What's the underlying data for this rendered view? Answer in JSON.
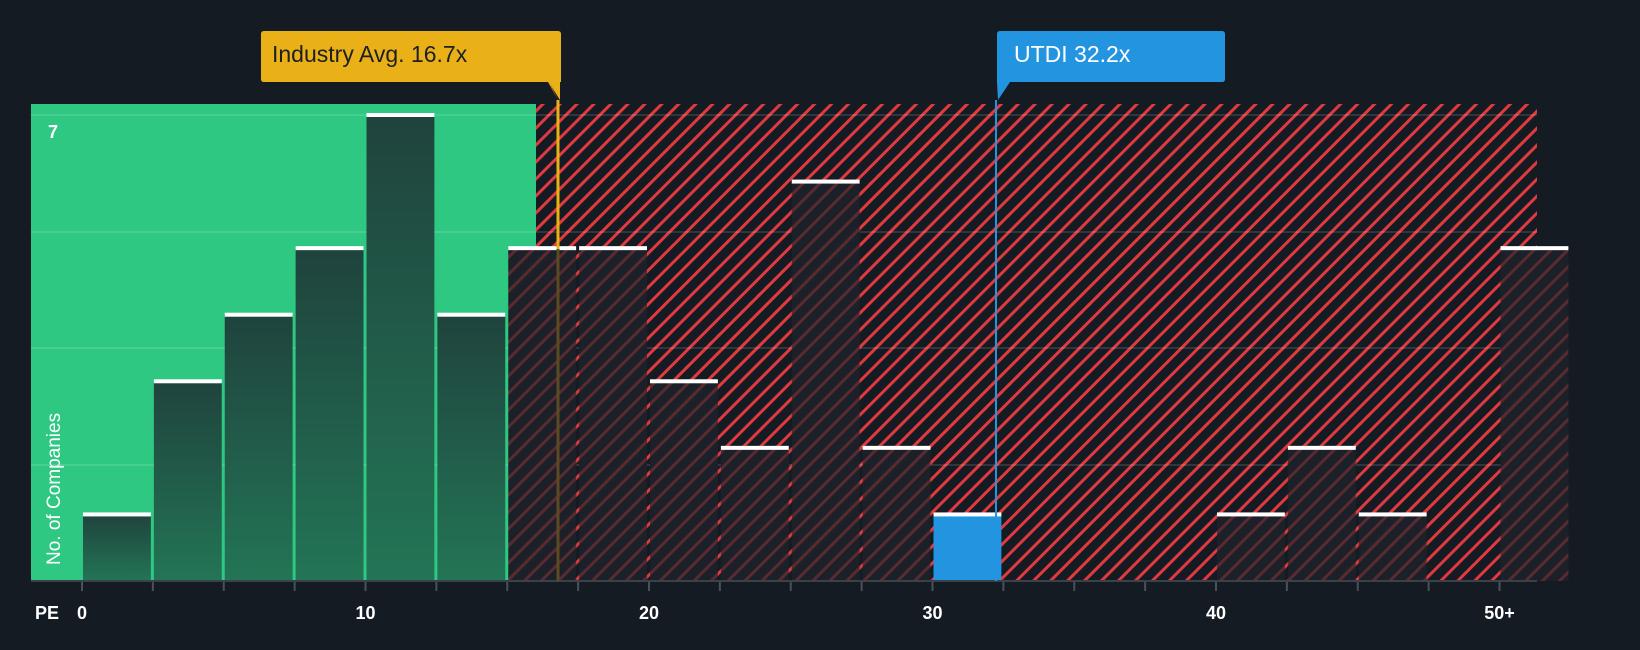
{
  "chart_data": {
    "type": "bar",
    "title": "",
    "xlabel": "PE",
    "ylabel": "No. of Companies",
    "x_tick_labels": [
      "0",
      "10",
      "20",
      "30",
      "40",
      "50+"
    ],
    "y_tick_labels": [
      "7"
    ],
    "ylim": [
      0,
      7
    ],
    "bin_width": 2.5,
    "categories": [
      "0-2.5",
      "2.5-5",
      "5-7.5",
      "7.5-10",
      "10-12.5",
      "12.5-15",
      "15-17.5",
      "17.5-20",
      "20-22.5",
      "22.5-25",
      "25-27.5",
      "27.5-30",
      "30-32.5",
      "32.5-35",
      "35-37.5",
      "37.5-40",
      "40-42.5",
      "42.5-45",
      "45-47.5",
      "47.5-50",
      "50+"
    ],
    "values": [
      1,
      3,
      4,
      5,
      7,
      4,
      5,
      5,
      3,
      2,
      6,
      2,
      1,
      0,
      0,
      0,
      1,
      2,
      1,
      0,
      5
    ],
    "highlight_bin_index": 12,
    "annotations": [
      {
        "label": "Industry Avg. 16.7x",
        "value": 16.7,
        "color": "#e9b017"
      },
      {
        "label": "UTDI 32.2x",
        "value": 32.2,
        "color": "#2394e0"
      }
    ],
    "regions": [
      {
        "name": "below-average",
        "from": 0,
        "to": 16.7,
        "color": "#2ec882"
      },
      {
        "name": "above-average",
        "from": 16.7,
        "to": 50,
        "color": "#e0393e",
        "pattern": "hatched"
      }
    ],
    "grid": true
  },
  "labels": {
    "industry_avg": "Industry Avg. 16.7x",
    "company": "UTDI 32.2x",
    "y_top_tick": "7",
    "y_axis_title": "No. of Companies",
    "x_axis_title": "PE"
  },
  "colors": {
    "background": "#151b23",
    "green_region": "#2ec882",
    "green_bar": "#214a3f",
    "red_hatch": "#e0393e",
    "industry_avg": "#e9b017",
    "company": "#2394e0"
  }
}
